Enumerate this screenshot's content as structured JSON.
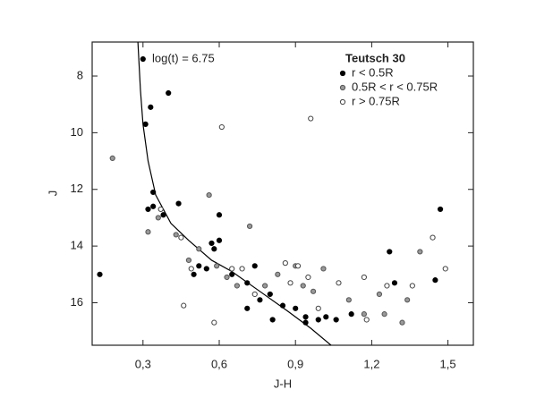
{
  "chart_data": {
    "type": "scatter",
    "x_label": "J-H",
    "y_label": "J",
    "annotation": "log(t) = 6.75",
    "legend_title": "Teutsch 30",
    "legend": "top-right",
    "xlim": [
      0.1,
      1.6
    ],
    "ylim": [
      6.8,
      17.5
    ],
    "y_reversed": true,
    "xticks": [
      {
        "value": 0.3,
        "label": "0,3"
      },
      {
        "value": 0.6,
        "label": "0,6"
      },
      {
        "value": 0.9,
        "label": "0,9"
      },
      {
        "value": 1.2,
        "label": "1,2"
      },
      {
        "value": 1.5,
        "label": "1,5"
      }
    ],
    "yticks": [
      8,
      10,
      12,
      14,
      16
    ],
    "series": [
      {
        "name": "r < 0.5R",
        "color": "#000000",
        "marker": "filled",
        "x": [
          0.3,
          0.4,
          0.33,
          0.31,
          0.13,
          0.32,
          0.34,
          0.38,
          0.44,
          0.6,
          0.34,
          0.57,
          0.6,
          0.58,
          0.55,
          0.5,
          0.65,
          0.71,
          0.74,
          0.76,
          0.71,
          0.8,
          0.85,
          0.81,
          0.9,
          0.94,
          0.94,
          0.99,
          1.02,
          1.06,
          1.12,
          1.47,
          1.27,
          1.29,
          1.45,
          0.52
        ],
        "values": [
          7.4,
          8.6,
          9.1,
          9.7,
          15.0,
          12.7,
          12.1,
          12.9,
          12.5,
          12.9,
          12.6,
          13.9,
          13.8,
          14.1,
          14.8,
          15.0,
          15.0,
          15.3,
          14.7,
          15.9,
          16.2,
          15.7,
          16.1,
          16.6,
          16.2,
          16.5,
          16.7,
          16.6,
          16.5,
          16.6,
          16.4,
          12.7,
          14.2,
          15.3,
          15.2,
          14.7
        ]
      },
      {
        "name": "0.5R < r < 0.75R",
        "color": "#999999",
        "marker": "gray",
        "x": [
          0.18,
          0.32,
          0.56,
          0.36,
          0.43,
          0.48,
          0.52,
          0.59,
          0.63,
          0.67,
          0.72,
          0.78,
          0.83,
          0.9,
          0.93,
          0.97,
          1.01,
          1.11,
          1.17,
          1.23,
          1.25,
          1.34,
          1.39,
          1.32
        ],
        "values": [
          10.9,
          13.5,
          12.2,
          13.0,
          13.6,
          14.5,
          14.1,
          14.7,
          15.1,
          15.4,
          13.3,
          15.4,
          15.0,
          14.7,
          15.4,
          15.6,
          14.8,
          15.9,
          16.4,
          15.7,
          16.4,
          15.9,
          14.2,
          16.7
        ]
      },
      {
        "name": "r > 0.75R",
        "color": "#ffffff",
        "marker": "open",
        "x": [
          0.61,
          0.96,
          0.37,
          0.45,
          0.49,
          0.46,
          0.58,
          0.65,
          0.69,
          0.74,
          0.86,
          0.91,
          0.88,
          0.95,
          1.07,
          1.17,
          1.26,
          1.36,
          1.44,
          1.49,
          1.18,
          0.99
        ],
        "values": [
          9.8,
          9.5,
          12.7,
          13.7,
          14.8,
          16.1,
          16.7,
          14.8,
          14.8,
          15.7,
          14.6,
          14.7,
          15.3,
          15.1,
          15.3,
          15.1,
          15.4,
          15.4,
          13.7,
          14.8,
          16.6,
          16.2
        ]
      }
    ],
    "curve": {
      "color": "#000000",
      "x": [
        0.28,
        0.29,
        0.3,
        0.32,
        0.35,
        0.41,
        0.48,
        0.57,
        0.65,
        0.76,
        0.87,
        0.96,
        1.04
      ],
      "y": [
        6.8,
        8.5,
        9.7,
        11.0,
        12.2,
        13.2,
        13.8,
        14.5,
        14.9,
        15.6,
        16.3,
        16.9,
        17.5
      ]
    }
  }
}
